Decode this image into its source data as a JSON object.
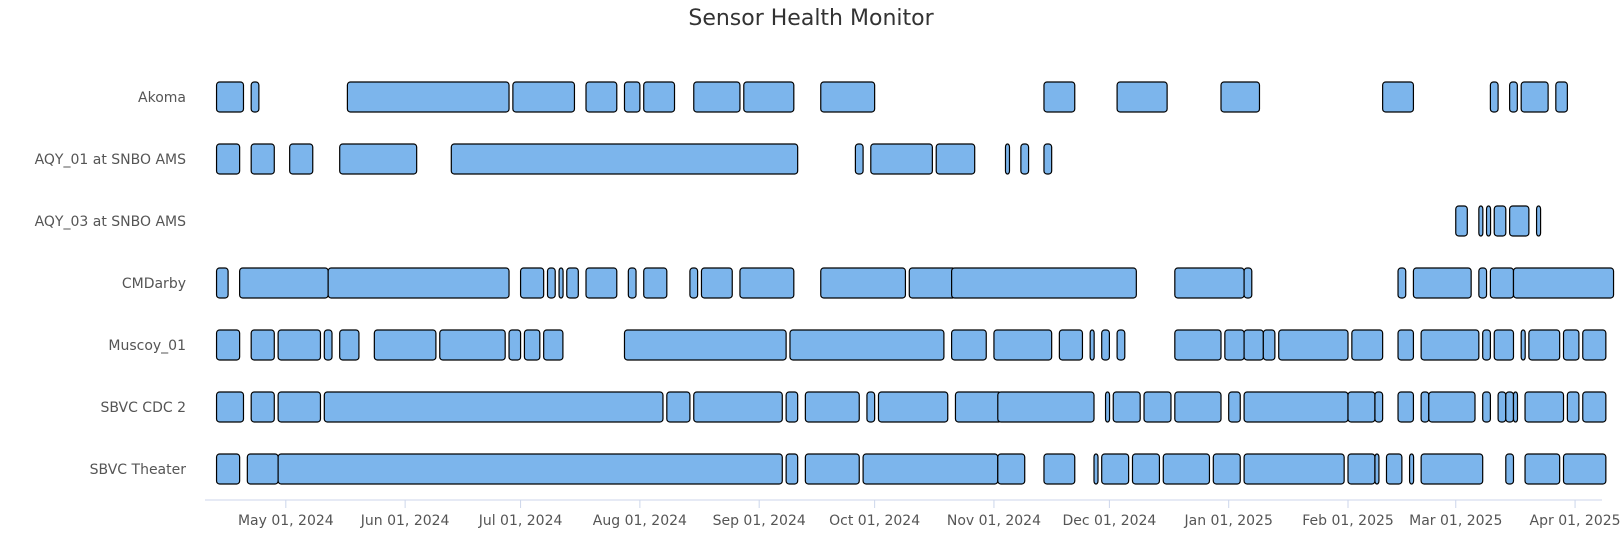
{
  "chart_data": {
    "type": "timeline",
    "title": "Sensor Health Monitor",
    "xlabel": "",
    "ylabel": "",
    "x_range": [
      "2024-04-10",
      "2025-04-08"
    ],
    "bar_color": "#7cb5ec",
    "categories": [
      "Akoma",
      "AQY_01 at SNBO AMS",
      "AQY_03 at SNBO AMS",
      "CMDarby",
      "Muscoy_01",
      "SBVC CDC 2",
      "SBVC Theater"
    ],
    "x_ticks": [
      {
        "date": "2024-05-01",
        "label": "May 01, 2024"
      },
      {
        "date": "2024-06-01",
        "label": "Jun 01, 2024"
      },
      {
        "date": "2024-07-01",
        "label": "Jul 01, 2024"
      },
      {
        "date": "2024-08-01",
        "label": "Aug 01, 2024"
      },
      {
        "date": "2024-09-01",
        "label": "Sep 01, 2024"
      },
      {
        "date": "2024-10-01",
        "label": "Oct 01, 2024"
      },
      {
        "date": "2024-11-01",
        "label": "Nov 01, 2024"
      },
      {
        "date": "2024-12-01",
        "label": "Dec 01, 2024"
      },
      {
        "date": "2025-01-01",
        "label": "Jan 01, 2025"
      },
      {
        "date": "2025-02-01",
        "label": "Feb 01, 2025"
      },
      {
        "date": "2025-03-01",
        "label": "Mar 01, 2025"
      },
      {
        "date": "2025-04-01",
        "label": "Apr 01, 2025"
      }
    ],
    "series": [
      {
        "category": "Akoma",
        "intervals": [
          [
            "2024-04-13",
            "2024-04-20"
          ],
          [
            "2024-04-22",
            "2024-04-24"
          ],
          [
            "2024-05-17",
            "2024-06-28"
          ],
          [
            "2024-06-29",
            "2024-07-15"
          ],
          [
            "2024-07-18",
            "2024-07-26"
          ],
          [
            "2024-07-28",
            "2024-08-01"
          ],
          [
            "2024-08-02",
            "2024-08-10"
          ],
          [
            "2024-08-15",
            "2024-08-27"
          ],
          [
            "2024-08-28",
            "2024-09-10"
          ],
          [
            "2024-09-17",
            "2024-10-01"
          ],
          [
            "2024-11-14",
            "2024-11-22"
          ],
          [
            "2024-12-03",
            "2024-12-16"
          ],
          [
            "2024-12-30",
            "2025-01-09"
          ],
          [
            "2025-02-10",
            "2025-02-18"
          ],
          [
            "2025-03-10",
            "2025-03-12"
          ],
          [
            "2025-03-15",
            "2025-03-17"
          ],
          [
            "2025-03-18",
            "2025-03-25"
          ],
          [
            "2025-03-27",
            "2025-03-30"
          ]
        ]
      },
      {
        "category": "AQY_01 at SNBO AMS",
        "intervals": [
          [
            "2024-04-13",
            "2024-04-19"
          ],
          [
            "2024-04-22",
            "2024-04-28"
          ],
          [
            "2024-05-02",
            "2024-05-08"
          ],
          [
            "2024-05-15",
            "2024-06-04"
          ],
          [
            "2024-06-13",
            "2024-09-11"
          ],
          [
            "2024-09-26",
            "2024-09-28"
          ],
          [
            "2024-09-30",
            "2024-10-16"
          ],
          [
            "2024-10-17",
            "2024-10-27"
          ],
          [
            "2024-11-04",
            "2024-11-05"
          ],
          [
            "2024-11-08",
            "2024-11-10"
          ],
          [
            "2024-11-14",
            "2024-11-16"
          ]
        ]
      },
      {
        "category": "AQY_03 at SNBO AMS",
        "intervals": [
          [
            "2025-03-01",
            "2025-03-04"
          ],
          [
            "2025-03-07",
            "2025-03-08"
          ],
          [
            "2025-03-09",
            "2025-03-10"
          ],
          [
            "2025-03-11",
            "2025-03-14"
          ],
          [
            "2025-03-15",
            "2025-03-20"
          ],
          [
            "2025-03-22",
            "2025-03-23"
          ]
        ]
      },
      {
        "category": "CMDarby",
        "intervals": [
          [
            "2024-04-13",
            "2024-04-16"
          ],
          [
            "2024-04-19",
            "2024-05-12"
          ],
          [
            "2024-05-12",
            "2024-06-28"
          ],
          [
            "2024-07-01",
            "2024-07-07"
          ],
          [
            "2024-07-08",
            "2024-07-10"
          ],
          [
            "2024-07-11",
            "2024-07-12"
          ],
          [
            "2024-07-13",
            "2024-07-16"
          ],
          [
            "2024-07-18",
            "2024-07-26"
          ],
          [
            "2024-07-29",
            "2024-07-31"
          ],
          [
            "2024-08-02",
            "2024-08-08"
          ],
          [
            "2024-08-14",
            "2024-08-16"
          ],
          [
            "2024-08-17",
            "2024-08-25"
          ],
          [
            "2024-08-27",
            "2024-09-10"
          ],
          [
            "2024-09-17",
            "2024-10-09"
          ],
          [
            "2024-10-10",
            "2024-10-22"
          ],
          [
            "2024-10-21",
            "2024-12-08"
          ],
          [
            "2024-12-18",
            "2025-01-05"
          ],
          [
            "2025-01-05",
            "2025-01-07"
          ],
          [
            "2025-02-14",
            "2025-02-16"
          ],
          [
            "2025-02-18",
            "2025-03-05"
          ],
          [
            "2025-03-07",
            "2025-03-09"
          ],
          [
            "2025-03-10",
            "2025-03-16"
          ],
          [
            "2025-03-16",
            "2025-04-11"
          ]
        ]
      },
      {
        "category": "Muscoy_01",
        "intervals": [
          [
            "2024-04-13",
            "2024-04-19"
          ],
          [
            "2024-04-22",
            "2024-04-28"
          ],
          [
            "2024-04-29",
            "2024-05-10"
          ],
          [
            "2024-05-11",
            "2024-05-13"
          ],
          [
            "2024-05-15",
            "2024-05-20"
          ],
          [
            "2024-05-24",
            "2024-06-09"
          ],
          [
            "2024-06-10",
            "2024-06-27"
          ],
          [
            "2024-06-28",
            "2024-07-01"
          ],
          [
            "2024-07-02",
            "2024-07-06"
          ],
          [
            "2024-07-07",
            "2024-07-12"
          ],
          [
            "2024-07-28",
            "2024-09-08"
          ],
          [
            "2024-09-09",
            "2024-10-19"
          ],
          [
            "2024-10-21",
            "2024-10-30"
          ],
          [
            "2024-11-01",
            "2024-11-16"
          ],
          [
            "2024-11-18",
            "2024-11-24"
          ],
          [
            "2024-11-26",
            "2024-11-27"
          ],
          [
            "2024-11-29",
            "2024-12-01"
          ],
          [
            "2024-12-03",
            "2024-12-05"
          ],
          [
            "2024-12-18",
            "2024-12-30"
          ],
          [
            "2024-12-31",
            "2025-01-05"
          ],
          [
            "2025-01-05",
            "2025-01-10"
          ],
          [
            "2025-01-10",
            "2025-01-13"
          ],
          [
            "2025-01-14",
            "2025-02-01"
          ],
          [
            "2025-02-02",
            "2025-02-10"
          ],
          [
            "2025-02-14",
            "2025-02-18"
          ],
          [
            "2025-02-20",
            "2025-03-07"
          ],
          [
            "2025-03-08",
            "2025-03-10"
          ],
          [
            "2025-03-11",
            "2025-03-16"
          ],
          [
            "2025-03-18",
            "2025-03-19"
          ],
          [
            "2025-03-20",
            "2025-03-28"
          ],
          [
            "2025-03-29",
            "2025-04-02"
          ],
          [
            "2025-04-03",
            "2025-04-09"
          ]
        ]
      },
      {
        "category": "SBVC CDC 2",
        "intervals": [
          [
            "2024-04-13",
            "2024-04-20"
          ],
          [
            "2024-04-22",
            "2024-04-28"
          ],
          [
            "2024-04-29",
            "2024-05-10"
          ],
          [
            "2024-05-11",
            "2024-08-07"
          ],
          [
            "2024-08-08",
            "2024-08-14"
          ],
          [
            "2024-08-15",
            "2024-09-07"
          ],
          [
            "2024-09-08",
            "2024-09-11"
          ],
          [
            "2024-09-13",
            "2024-09-27"
          ],
          [
            "2024-09-29",
            "2024-10-01"
          ],
          [
            "2024-10-02",
            "2024-10-20"
          ],
          [
            "2024-10-22",
            "2024-11-03"
          ],
          [
            "2024-11-02",
            "2024-11-27"
          ],
          [
            "2024-11-30",
            "2024-12-01"
          ],
          [
            "2024-12-02",
            "2024-12-09"
          ],
          [
            "2024-12-10",
            "2024-12-17"
          ],
          [
            "2024-12-18",
            "2024-12-30"
          ],
          [
            "2025-01-01",
            "2025-01-04"
          ],
          [
            "2025-01-05",
            "2025-02-01"
          ],
          [
            "2025-02-01",
            "2025-02-08"
          ],
          [
            "2025-02-08",
            "2025-02-10"
          ],
          [
            "2025-02-14",
            "2025-02-18"
          ],
          [
            "2025-02-20",
            "2025-02-22"
          ],
          [
            "2025-02-22",
            "2025-03-06"
          ],
          [
            "2025-03-08",
            "2025-03-10"
          ],
          [
            "2025-03-12",
            "2025-03-14"
          ],
          [
            "2025-03-14",
            "2025-03-16"
          ],
          [
            "2025-03-16",
            "2025-03-17"
          ],
          [
            "2025-03-19",
            "2025-03-29"
          ],
          [
            "2025-03-30",
            "2025-04-02"
          ],
          [
            "2025-04-03",
            "2025-04-09"
          ]
        ]
      },
      {
        "category": "SBVC Theater",
        "intervals": [
          [
            "2024-04-13",
            "2024-04-19"
          ],
          [
            "2024-04-21",
            "2024-04-29"
          ],
          [
            "2024-04-29",
            "2024-09-07"
          ],
          [
            "2024-09-08",
            "2024-09-11"
          ],
          [
            "2024-09-13",
            "2024-09-27"
          ],
          [
            "2024-09-28",
            "2024-11-02"
          ],
          [
            "2024-11-02",
            "2024-11-09"
          ],
          [
            "2024-11-14",
            "2024-11-22"
          ],
          [
            "2024-11-27",
            "2024-11-28"
          ],
          [
            "2024-11-29",
            "2024-12-06"
          ],
          [
            "2024-12-07",
            "2024-12-14"
          ],
          [
            "2024-12-15",
            "2024-12-27"
          ],
          [
            "2024-12-28",
            "2025-01-04"
          ],
          [
            "2025-01-05",
            "2025-01-31"
          ],
          [
            "2025-02-01",
            "2025-02-08"
          ],
          [
            "2025-02-08",
            "2025-02-09"
          ],
          [
            "2025-02-11",
            "2025-02-15"
          ],
          [
            "2025-02-17",
            "2025-02-18"
          ],
          [
            "2025-02-20",
            "2025-03-08"
          ],
          [
            "2025-03-14",
            "2025-03-16"
          ],
          [
            "2025-03-19",
            "2025-03-28"
          ],
          [
            "2025-03-29",
            "2025-04-09"
          ]
        ]
      }
    ]
  }
}
